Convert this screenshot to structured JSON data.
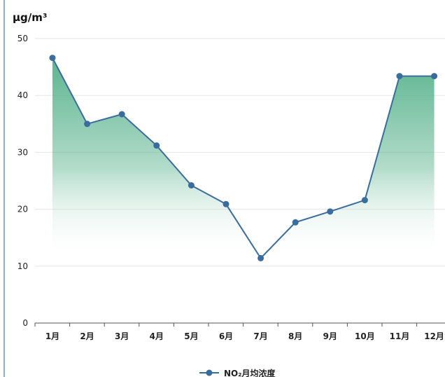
{
  "chart_data": {
    "type": "area",
    "unit_label": "μg/m³",
    "categories": [
      "1月",
      "2月",
      "3月",
      "4月",
      "5月",
      "6月",
      "7月",
      "8月",
      "9月",
      "10月",
      "11月",
      "12月"
    ],
    "series": [
      {
        "name": "NO₂月均浓度",
        "values": [
          46.6,
          35.0,
          36.7,
          31.2,
          24.2,
          20.9,
          11.4,
          17.7,
          19.6,
          21.6,
          43.4,
          43.4
        ]
      }
    ],
    "ylim": [
      0,
      50
    ],
    "yticks": [
      0,
      10,
      20,
      30,
      40,
      50
    ],
    "grid": true,
    "legend": "bottom",
    "colors": {
      "line": "#3a6c9e",
      "marker": "#3a6c9e",
      "fill_top": "#53b08a",
      "fill_bottom": "#ffffff",
      "grid": "#e6e6e6",
      "axis": "#555555"
    }
  }
}
